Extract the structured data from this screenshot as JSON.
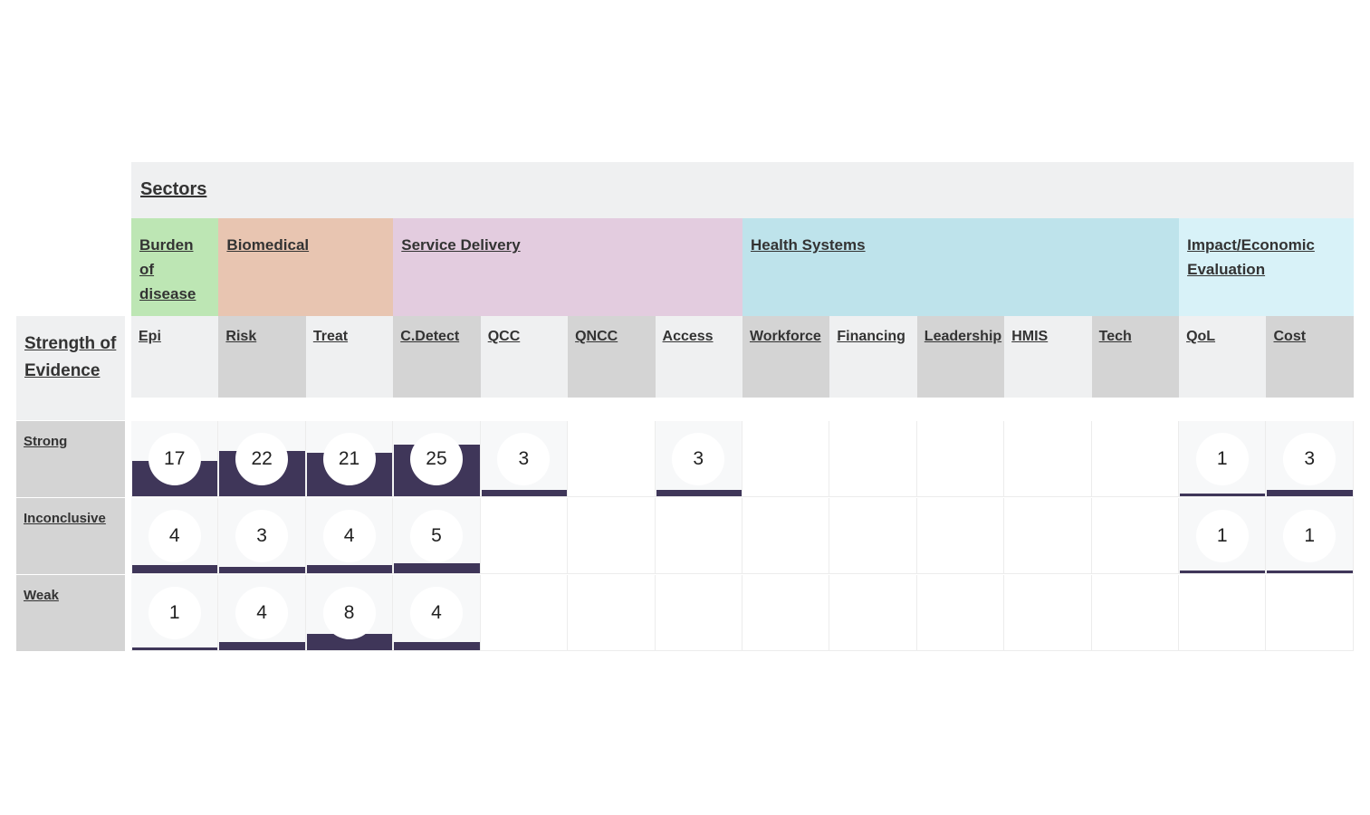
{
  "sectors_title": "Sectors",
  "soe_title": "Strength of Evidence",
  "categories": [
    {
      "label": "Burden of disease",
      "color": "#bde6b4",
      "span": 1
    },
    {
      "label": "Biomedical",
      "color": "#e8c5b1",
      "span": 2
    },
    {
      "label": "Service Delivery",
      "color": "#e3ccdf",
      "span": 4
    },
    {
      "label": "Health Systems",
      "color": "#bee3eb",
      "span": 5
    },
    {
      "label": "Impact/Economic Evaluation",
      "color": "#d8f2f8",
      "span": 2
    }
  ],
  "subcategories": [
    "Epi",
    "Risk",
    "Treat",
    "C.Detect",
    "QCC",
    "QNCC",
    "Access",
    "Workforce",
    "Financing",
    "Leadership",
    "HMIS",
    "Tech",
    "QoL",
    "Cost"
  ],
  "rows": [
    {
      "label": "Strong",
      "values": [
        17,
        22,
        21,
        25,
        3,
        null,
        3,
        null,
        null,
        null,
        null,
        null,
        1,
        3
      ]
    },
    {
      "label": "Inconclusive",
      "values": [
        4,
        3,
        4,
        5,
        null,
        null,
        null,
        null,
        null,
        null,
        null,
        null,
        1,
        1
      ]
    },
    {
      "label": "Weak",
      "values": [
        1,
        4,
        8,
        4,
        null,
        null,
        null,
        null,
        null,
        null,
        null,
        null,
        null,
        null
      ]
    }
  ],
  "bar_color": "#3f3659",
  "bar_max": 25
}
